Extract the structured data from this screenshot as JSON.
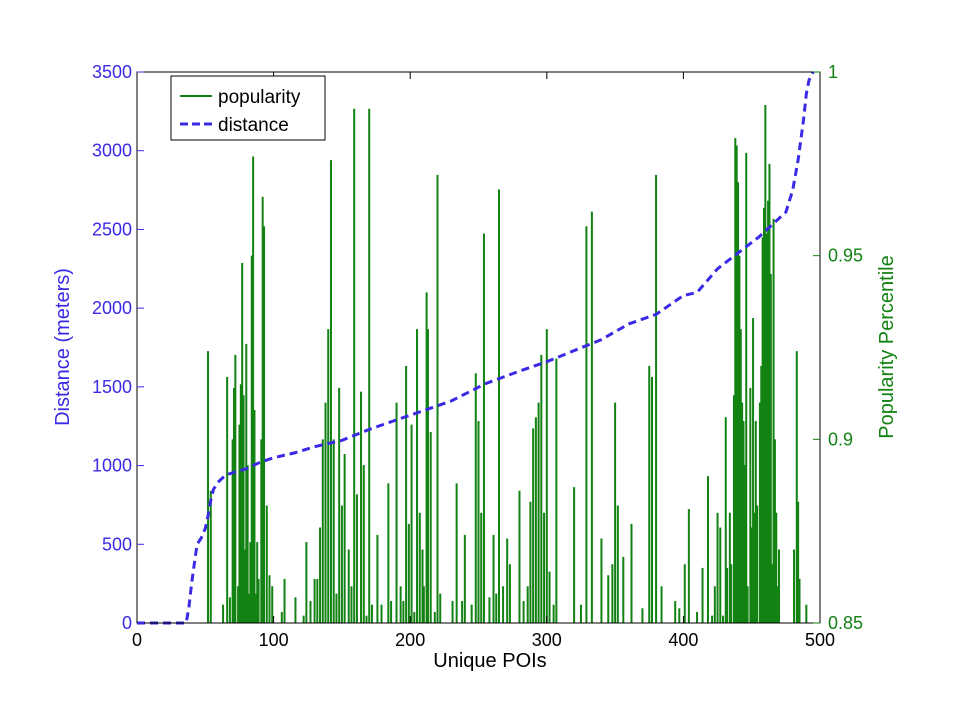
{
  "chart_data": {
    "type": "bar+line",
    "xlabel": "Unique POIs",
    "ylabel_left": "Distance (meters)",
    "ylabel_right": "Popularity Percentile",
    "xlim": [
      0,
      500
    ],
    "ylim_left": [
      0,
      3500
    ],
    "ylim_right": [
      0.85,
      1.0
    ],
    "x_ticks": [
      0,
      100,
      200,
      300,
      400,
      500
    ],
    "y_ticks_left": [
      0,
      500,
      1000,
      1500,
      2000,
      2500,
      3000,
      3500
    ],
    "y_ticks_right": [
      {
        "value": 0.85,
        "label": "0.85"
      },
      {
        "value": 0.9,
        "label": "0.9"
      },
      {
        "value": 0.95,
        "label": "0.95"
      },
      {
        "value": 1.0,
        "label": "1"
      }
    ],
    "grid": false,
    "legend_position": "top-left",
    "colors": {
      "popularity": "#128212",
      "distance": "#3a2ae6",
      "left_axis": "#3a2ae6",
      "right_axis": "#128212"
    },
    "series": [
      {
        "name": "popularity",
        "kind": "bar",
        "axis": "right",
        "points": [
          [
            52,
            0.924
          ],
          [
            54,
            0.886
          ],
          [
            63,
            0.855
          ],
          [
            66,
            0.917
          ],
          [
            68,
            0.857
          ],
          [
            70,
            0.9
          ],
          [
            71,
            0.914
          ],
          [
            72,
            0.923
          ],
          [
            74,
            0.86
          ],
          [
            75,
            0.904
          ],
          [
            76,
            0.915
          ],
          [
            77,
            0.948
          ],
          [
            78,
            0.912
          ],
          [
            79,
            0.87
          ],
          [
            80,
            0.926
          ],
          [
            81,
            0.893
          ],
          [
            82,
            0.858
          ],
          [
            83,
            0.872
          ],
          [
            84,
            0.95
          ],
          [
            85,
            0.977
          ],
          [
            86,
            0.908
          ],
          [
            87,
            0.858
          ],
          [
            88,
            0.872
          ],
          [
            89,
            0.862
          ],
          [
            91,
            0.9
          ],
          [
            92,
            0.966
          ],
          [
            93,
            0.958
          ],
          [
            95,
            0.882
          ],
          [
            97,
            0.863
          ],
          [
            99,
            0.86
          ],
          [
            106,
            0.853
          ],
          [
            108,
            0.862
          ],
          [
            116,
            0.857
          ],
          [
            122,
            0.852
          ],
          [
            124,
            0.872
          ],
          [
            127,
            0.856
          ],
          [
            130,
            0.862
          ],
          [
            132,
            0.862
          ],
          [
            134,
            0.876
          ],
          [
            136,
            0.9
          ],
          [
            138,
            0.91
          ],
          [
            140,
            0.93
          ],
          [
            142,
            0.976
          ],
          [
            144,
            0.9
          ],
          [
            146,
            0.858
          ],
          [
            148,
            0.914
          ],
          [
            150,
            0.882
          ],
          [
            152,
            0.896
          ],
          [
            155,
            0.87
          ],
          [
            157,
            0.86
          ],
          [
            159,
            0.99
          ],
          [
            161,
            0.885
          ],
          [
            164,
            0.913
          ],
          [
            166,
            0.893
          ],
          [
            168,
            0.852
          ],
          [
            170,
            0.99
          ],
          [
            172,
            0.855
          ],
          [
            176,
            0.874
          ],
          [
            179,
            0.855
          ],
          [
            184,
            0.888
          ],
          [
            186,
            0.856
          ],
          [
            190,
            0.91
          ],
          [
            193,
            0.86
          ],
          [
            195,
            0.856
          ],
          [
            197,
            0.92
          ],
          [
            199,
            0.877
          ],
          [
            201,
            0.904
          ],
          [
            203,
            0.853
          ],
          [
            205,
            0.93
          ],
          [
            207,
            0.88
          ],
          [
            209,
            0.87
          ],
          [
            210,
            0.86
          ],
          [
            212,
            0.94
          ],
          [
            213,
            0.93
          ],
          [
            215,
            0.902
          ],
          [
            218,
            0.853
          ],
          [
            220,
            0.972
          ],
          [
            222,
            0.858
          ],
          [
            231,
            0.856
          ],
          [
            234,
            0.888
          ],
          [
            238,
            0.856
          ],
          [
            240,
            0.874
          ],
          [
            245,
            0.855
          ],
          [
            248,
            0.918
          ],
          [
            250,
            0.905
          ],
          [
            252,
            0.88
          ],
          [
            254,
            0.956
          ],
          [
            258,
            0.857
          ],
          [
            261,
            0.874
          ],
          [
            263,
            0.858
          ],
          [
            265,
            0.968
          ],
          [
            268,
            0.86
          ],
          [
            271,
            0.873
          ],
          [
            273,
            0.866
          ],
          [
            280,
            0.886
          ],
          [
            283,
            0.856
          ],
          [
            286,
            0.86
          ],
          [
            288,
            0.883
          ],
          [
            290,
            0.903
          ],
          [
            292,
            0.906
          ],
          [
            294,
            0.91
          ],
          [
            296,
            0.923
          ],
          [
            298,
            0.88
          ],
          [
            300,
            0.93
          ],
          [
            302,
            0.864
          ],
          [
            305,
            0.855
          ],
          [
            307,
            0.922
          ],
          [
            311,
            0.85
          ],
          [
            320,
            0.887
          ],
          [
            325,
            0.855
          ],
          [
            329,
            0.958
          ],
          [
            333,
            0.962
          ],
          [
            340,
            0.873
          ],
          [
            345,
            0.863
          ],
          [
            348,
            0.866
          ],
          [
            350,
            0.91
          ],
          [
            352,
            0.882
          ],
          [
            356,
            0.868
          ],
          [
            362,
            0.877
          ],
          [
            370,
            0.854
          ],
          [
            375,
            0.92
          ],
          [
            377,
            0.917
          ],
          [
            380,
            0.972
          ],
          [
            384,
            0.86
          ],
          [
            394,
            0.856
          ],
          [
            397,
            0.854
          ],
          [
            401,
            0.866
          ],
          [
            404,
            0.881
          ],
          [
            410,
            0.853
          ],
          [
            414,
            0.865
          ],
          [
            418,
            0.89
          ],
          [
            421,
            0.852
          ],
          [
            423,
            0.86
          ],
          [
            425,
            0.88
          ],
          [
            427,
            0.876
          ],
          [
            429,
            0.852
          ],
          [
            431,
            0.906
          ],
          [
            432,
            0.865
          ],
          [
            434,
            0.88
          ],
          [
            435,
            0.866
          ],
          [
            437,
            0.912
          ],
          [
            438,
            0.982
          ],
          [
            439,
            0.98
          ],
          [
            440,
            0.97
          ],
          [
            441,
            0.95
          ],
          [
            442,
            0.93
          ],
          [
            443,
            0.91
          ],
          [
            444,
            0.905
          ],
          [
            445,
            0.893
          ],
          [
            446,
            0.978
          ],
          [
            447,
            0.86
          ],
          [
            449,
            0.914
          ],
          [
            450,
            0.876
          ],
          [
            451,
            0.933
          ],
          [
            452,
            0.88
          ],
          [
            453,
            0.905
          ],
          [
            454,
            0.882
          ],
          [
            456,
            0.91
          ],
          [
            457,
            0.92
          ],
          [
            458,
            0.955
          ],
          [
            459,
            0.963
          ],
          [
            460,
            0.991
          ],
          [
            461,
            0.956
          ],
          [
            462,
            0.965
          ],
          [
            463,
            0.975
          ],
          [
            464,
            0.945
          ],
          [
            465,
            0.866
          ],
          [
            466,
            0.96
          ],
          [
            467,
            0.9
          ],
          [
            468,
            0.88
          ],
          [
            469,
            0.86
          ],
          [
            470,
            0.87
          ],
          [
            481,
            0.87
          ],
          [
            483,
            0.924
          ],
          [
            484,
            0.883
          ],
          [
            485,
            0.862
          ],
          [
            490,
            0.855
          ]
        ]
      },
      {
        "name": "distance",
        "kind": "line",
        "axis": "left",
        "style": "dashed",
        "points": [
          [
            0,
            0
          ],
          [
            36,
            0
          ],
          [
            38,
            100
          ],
          [
            40,
            250
          ],
          [
            42,
            380
          ],
          [
            44,
            500
          ],
          [
            47,
            540
          ],
          [
            50,
            600
          ],
          [
            52,
            680
          ],
          [
            54,
            780
          ],
          [
            56,
            850
          ],
          [
            60,
            900
          ],
          [
            65,
            940
          ],
          [
            72,
            960
          ],
          [
            80,
            980
          ],
          [
            90,
            1020
          ],
          [
            100,
            1050
          ],
          [
            115,
            1080
          ],
          [
            130,
            1120
          ],
          [
            150,
            1160
          ],
          [
            170,
            1230
          ],
          [
            190,
            1290
          ],
          [
            210,
            1350
          ],
          [
            230,
            1410
          ],
          [
            255,
            1520
          ],
          [
            280,
            1600
          ],
          [
            300,
            1660
          ],
          [
            320,
            1730
          ],
          [
            340,
            1800
          ],
          [
            360,
            1900
          ],
          [
            380,
            1960
          ],
          [
            400,
            2080
          ],
          [
            410,
            2100
          ],
          [
            425,
            2250
          ],
          [
            440,
            2350
          ],
          [
            455,
            2450
          ],
          [
            465,
            2530
          ],
          [
            475,
            2610
          ],
          [
            480,
            2750
          ],
          [
            484,
            2940
          ],
          [
            488,
            3200
          ],
          [
            490,
            3360
          ],
          [
            492,
            3450
          ],
          [
            495,
            3500
          ]
        ]
      }
    ]
  }
}
